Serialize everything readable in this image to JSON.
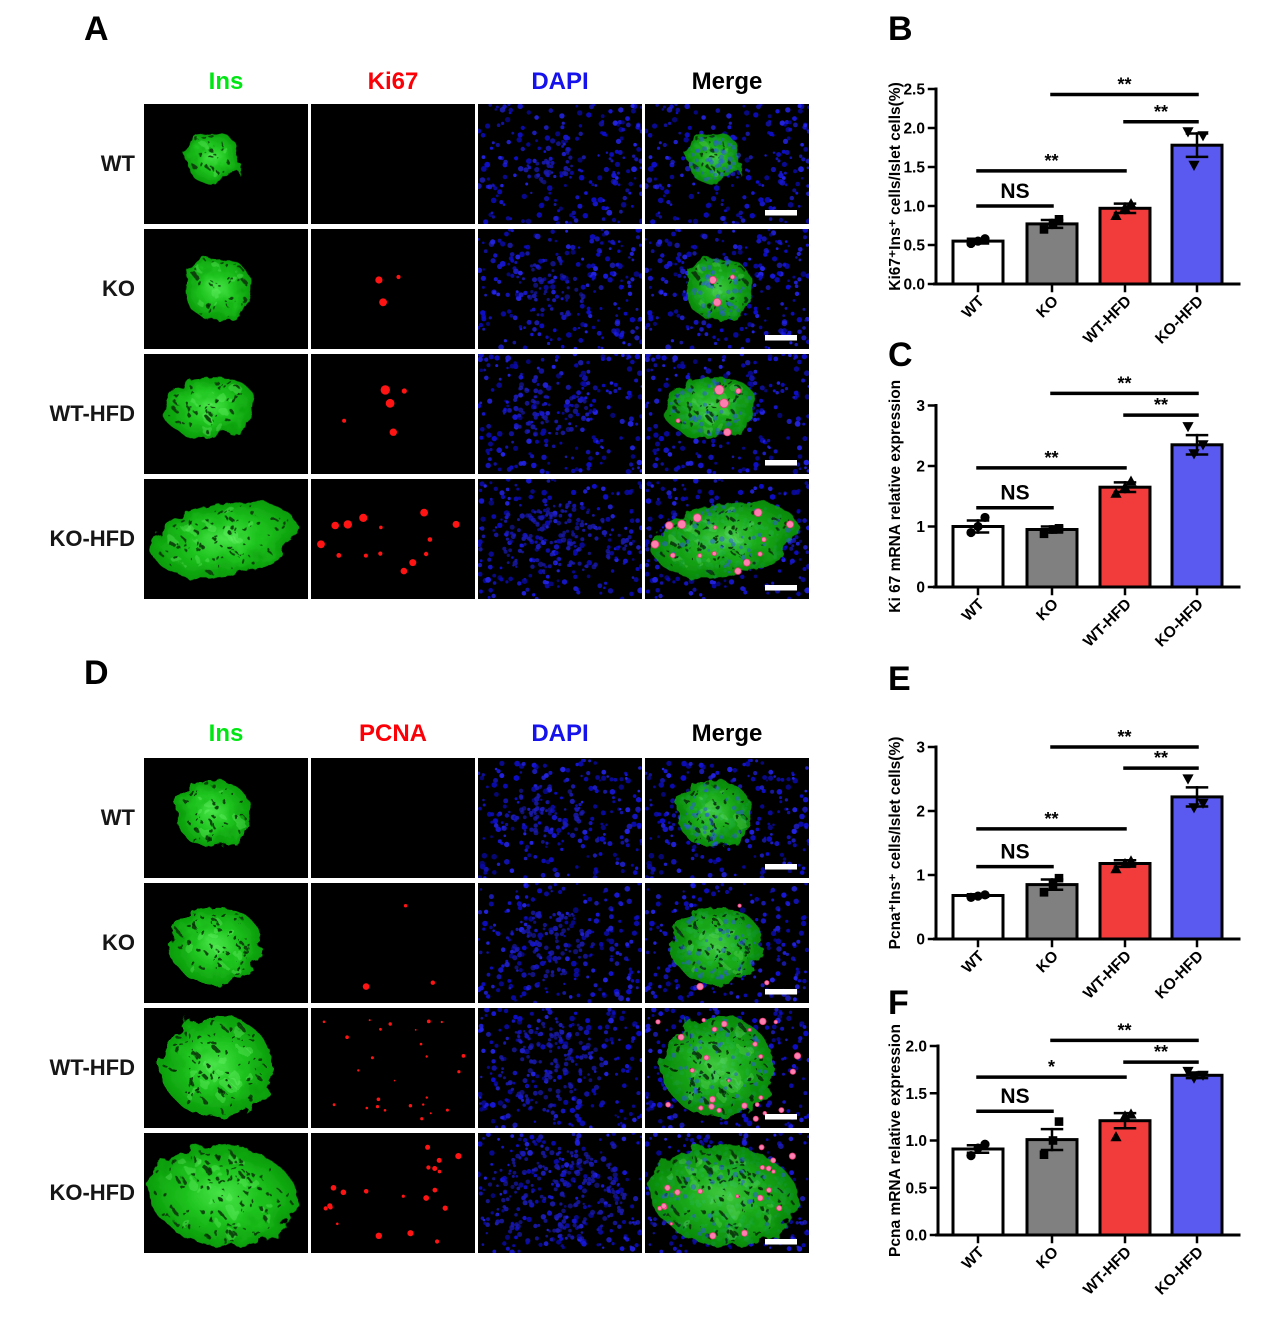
{
  "panels": {
    "A": {
      "letter": "A",
      "columns": [
        {
          "label": "Ins",
          "color": "#00e612"
        },
        {
          "label": "Ki67",
          "color": "#fb0007"
        },
        {
          "label": "DAPI",
          "color": "#1512ec"
        },
        {
          "label": "Merge",
          "color": "#000000"
        }
      ],
      "rows": [
        "WT",
        "KO",
        "WT-HFD",
        "KO-HFD"
      ],
      "red_dot_counts": [
        0,
        3,
        5,
        14
      ]
    },
    "D": {
      "letter": "D",
      "columns": [
        {
          "label": "Ins",
          "color": "#00e612"
        },
        {
          "label": "PCNA",
          "color": "#fb0007"
        },
        {
          "label": "DAPI",
          "color": "#1512ec"
        },
        {
          "label": "Merge",
          "color": "#000000"
        }
      ],
      "rows": [
        "WT",
        "KO",
        "WT-HFD",
        "KO-HFD"
      ],
      "red_dot_counts": [
        0,
        3,
        26,
        20
      ]
    }
  },
  "bar_colors": [
    "#ffffff",
    "#808080",
    "#f23c3c",
    "#5a5af0"
  ],
  "marker_shapes": [
    "circle",
    "square",
    "triangle-up",
    "triangle-down"
  ],
  "chart_data": [
    {
      "panel": "B",
      "type": "bar",
      "title": "",
      "ylabel": "Ki67⁺Ins⁺ cells/Islet cells(%)",
      "xlabel": "",
      "categories": [
        "WT",
        "KO",
        "WT-HFD",
        "KO-HFD"
      ],
      "values": [
        0.55,
        0.77,
        0.97,
        1.78
      ],
      "errors": [
        0.03,
        0.05,
        0.06,
        0.15
      ],
      "points": [
        [
          0.52,
          0.55,
          0.58
        ],
        [
          0.7,
          0.78,
          0.83
        ],
        [
          0.88,
          0.98,
          1.03
        ],
        [
          1.52,
          1.9,
          1.95
        ]
      ],
      "yticks": [
        0,
        0.5,
        1,
        1.5,
        2,
        2.5
      ],
      "ytick_decimals": 1,
      "ylim": [
        0,
        2.5
      ],
      "grid": false,
      "significance": [
        {
          "from": 0,
          "to": 1,
          "y": 1.0,
          "label": "NS"
        },
        {
          "from": 0,
          "to": 2,
          "y": 1.45,
          "label": "**"
        },
        {
          "from": 2,
          "to": 3,
          "y": 2.08,
          "label": "**"
        },
        {
          "from": 1,
          "to": 3,
          "y": 2.43,
          "label": "**"
        }
      ]
    },
    {
      "panel": "C",
      "type": "bar",
      "title": "",
      "ylabel": "Ki 67 mRNA relative expression",
      "xlabel": "",
      "categories": [
        "WT",
        "KO",
        "WT-HFD",
        "KO-HFD"
      ],
      "values": [
        1.0,
        0.95,
        1.65,
        2.35
      ],
      "errors": [
        0.1,
        0.05,
        0.08,
        0.16
      ],
      "points": [
        [
          0.9,
          1.0,
          1.15
        ],
        [
          0.88,
          0.95,
          0.97
        ],
        [
          1.55,
          1.65,
          1.75
        ],
        [
          2.2,
          2.35,
          2.65
        ]
      ],
      "yticks": [
        0,
        1,
        2,
        3
      ],
      "ytick_decimals": 0,
      "ylim": [
        0,
        3
      ],
      "grid": false,
      "significance": [
        {
          "from": 0,
          "to": 1,
          "y": 1.31,
          "label": "NS"
        },
        {
          "from": 0,
          "to": 2,
          "y": 1.97,
          "label": "**"
        },
        {
          "from": 2,
          "to": 3,
          "y": 2.84,
          "label": "**"
        },
        {
          "from": 1,
          "to": 3,
          "y": 3.2,
          "label": "**"
        }
      ]
    },
    {
      "panel": "E",
      "type": "bar",
      "title": "",
      "ylabel": "Pcna⁺Ins⁺ cells/Islet cells(%)",
      "xlabel": "",
      "categories": [
        "WT",
        "KO",
        "WT-HFD",
        "KO-HFD"
      ],
      "values": [
        0.68,
        0.85,
        1.18,
        2.22
      ],
      "errors": [
        0.02,
        0.08,
        0.05,
        0.15
      ],
      "points": [
        [
          0.65,
          0.67,
          0.69
        ],
        [
          0.73,
          0.85,
          0.95
        ],
        [
          1.1,
          1.18,
          1.22
        ],
        [
          2.05,
          2.12,
          2.5
        ]
      ],
      "yticks": [
        0,
        1,
        2,
        3
      ],
      "ytick_decimals": 0,
      "ylim": [
        0,
        3
      ],
      "grid": false,
      "significance": [
        {
          "from": 0,
          "to": 1,
          "y": 1.13,
          "label": "NS"
        },
        {
          "from": 0,
          "to": 2,
          "y": 1.72,
          "label": "**"
        },
        {
          "from": 2,
          "to": 3,
          "y": 2.67,
          "label": "**"
        },
        {
          "from": 1,
          "to": 3,
          "y": 3.0,
          "label": "**"
        }
      ]
    },
    {
      "panel": "F",
      "type": "bar",
      "title": "",
      "ylabel": "Pcna mRNA relative expression",
      "xlabel": "",
      "categories": [
        "WT",
        "KO",
        "WT-HFD",
        "KO-HFD"
      ],
      "values": [
        0.91,
        1.01,
        1.21,
        1.69
      ],
      "errors": [
        0.04,
        0.11,
        0.08,
        0.03
      ],
      "points": [
        [
          0.84,
          0.92,
          0.96
        ],
        [
          0.85,
          1.0,
          1.2
        ],
        [
          1.04,
          1.26,
          1.28
        ],
        [
          1.66,
          1.69,
          1.73
        ]
      ],
      "yticks": [
        0,
        0.5,
        1,
        1.5,
        2
      ],
      "ytick_decimals": 1,
      "ylim": [
        0,
        2
      ],
      "grid": false,
      "significance": [
        {
          "from": 0,
          "to": 1,
          "y": 1.31,
          "label": "NS"
        },
        {
          "from": 0,
          "to": 2,
          "y": 1.67,
          "label": "*"
        },
        {
          "from": 2,
          "to": 3,
          "y": 1.83,
          "label": "**"
        },
        {
          "from": 1,
          "to": 3,
          "y": 2.06,
          "label": "**"
        }
      ]
    }
  ]
}
